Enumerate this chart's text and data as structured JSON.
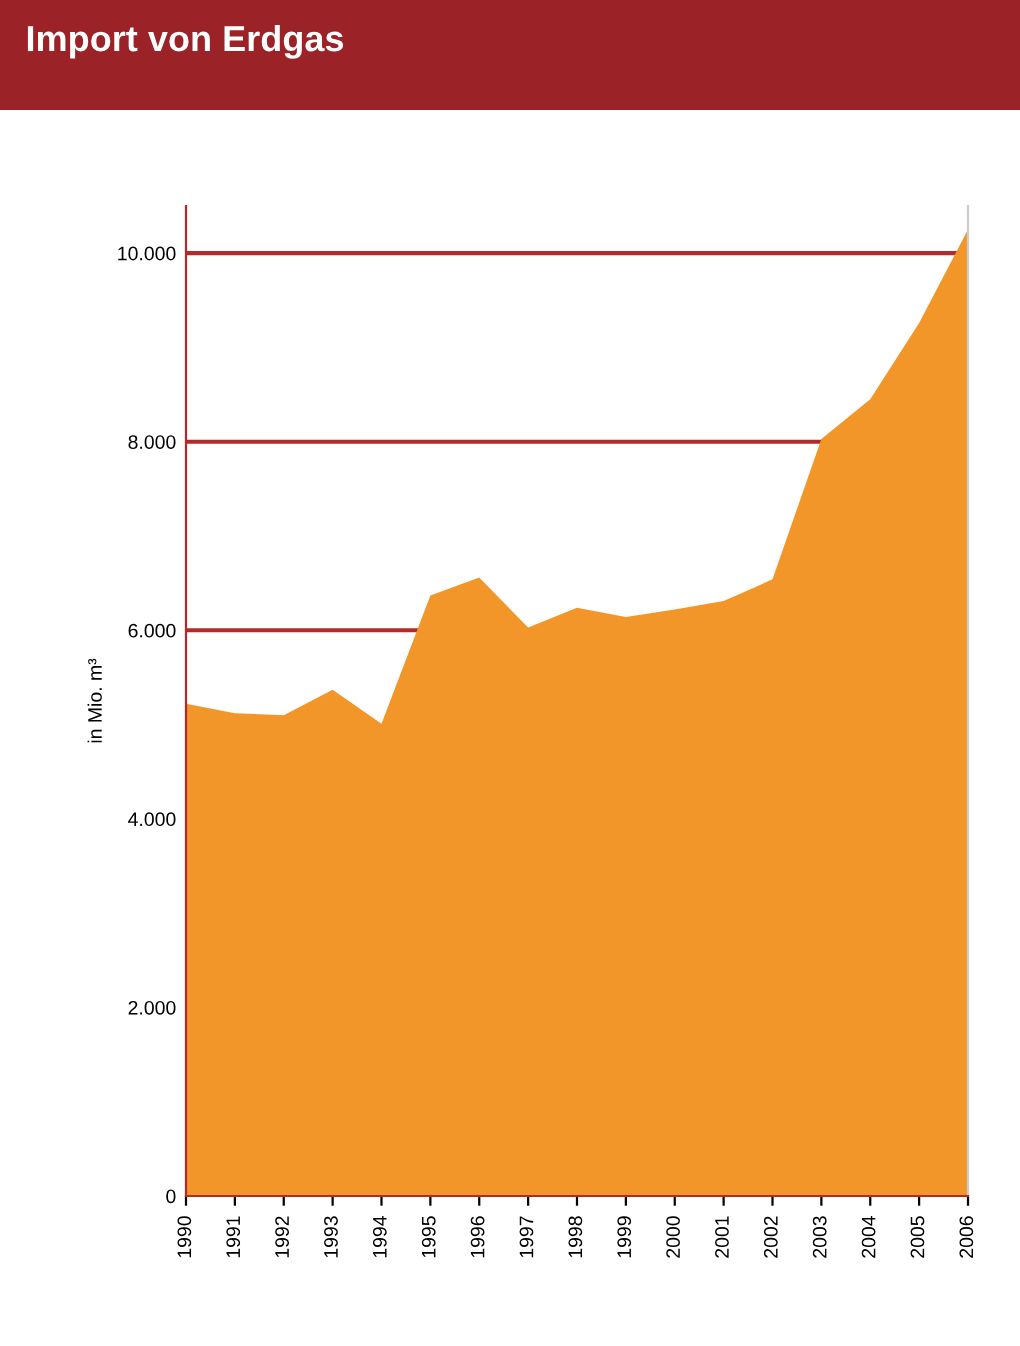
{
  "chart_data": {
    "type": "area",
    "title": "Import von Erdgas",
    "ylabel": "in Mio. m³",
    "categories": [
      "1990",
      "1991",
      "1992",
      "1993",
      "1994",
      "1995",
      "1996",
      "1997",
      "1998",
      "1999",
      "2000",
      "2001",
      "2002",
      "2003",
      "2004",
      "2005",
      "2006"
    ],
    "series": [
      {
        "color": "#f3962a",
        "values": [
          5220,
          5120,
          5100,
          5370,
          5010,
          6370,
          6560,
          6030,
          6240,
          6140,
          6220,
          6310,
          6540,
          8030,
          8450,
          9260,
          10250
        ]
      }
    ],
    "ylim": [
      0,
      10500
    ],
    "yticks": [
      0,
      {
        "value": 2000,
        "label": "2.000"
      },
      {
        "value": 4000,
        "label": "4.000"
      },
      {
        "value": 6000,
        "label": "6.000"
      },
      {
        "value": 8000,
        "label": "8.000"
      },
      {
        "value": 10000,
        "label": "10.000"
      }
    ],
    "grid": "y",
    "legend": false
  }
}
